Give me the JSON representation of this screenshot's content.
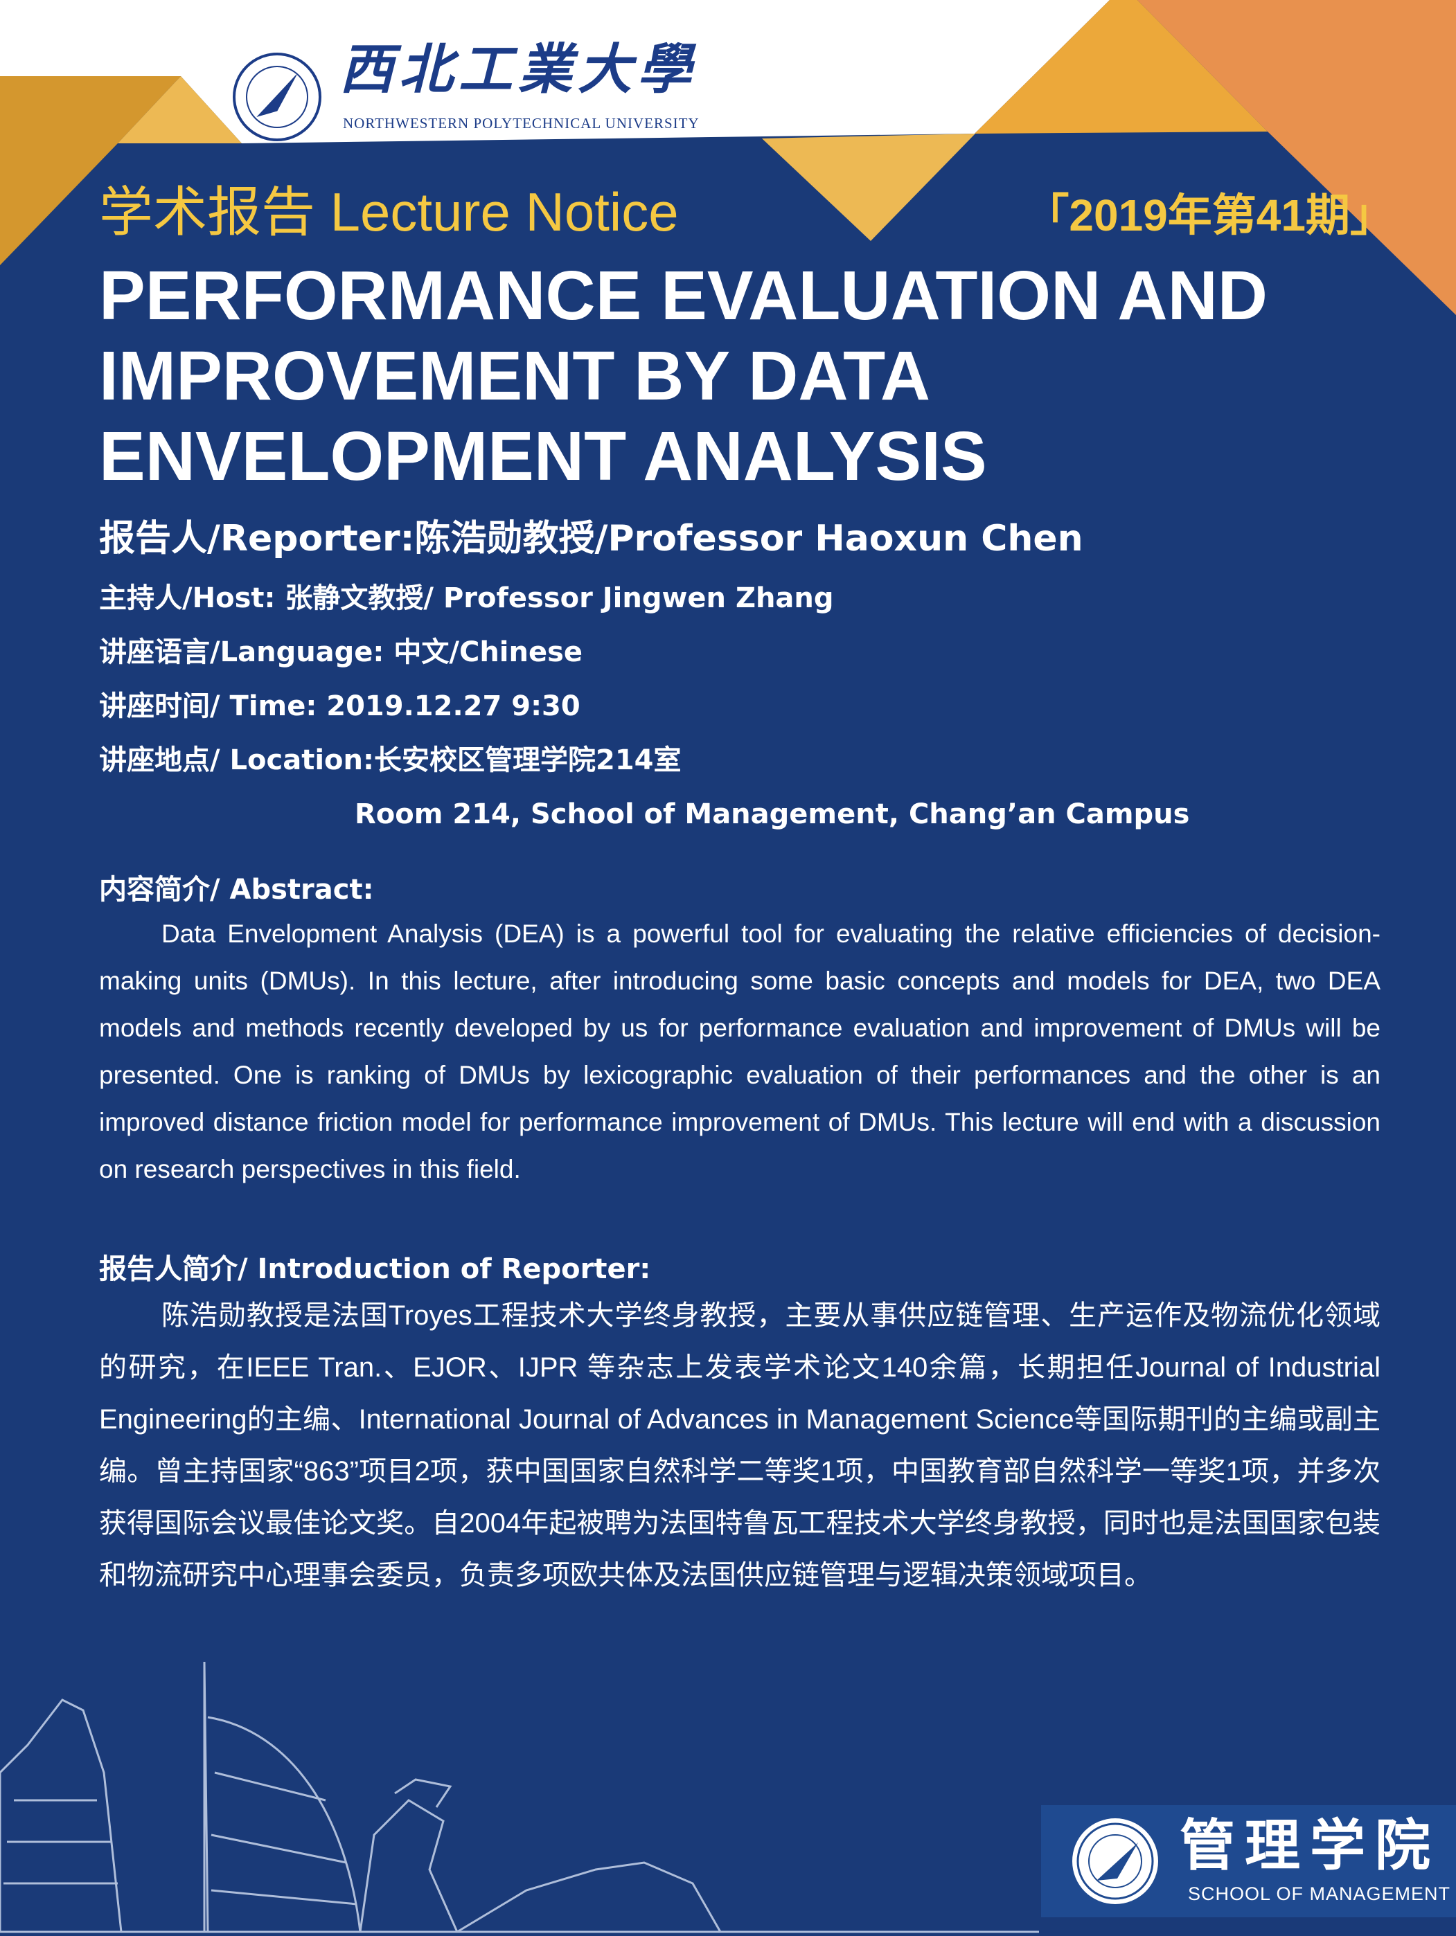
{
  "colors": {
    "background": "#1a3a78",
    "accent_yellow": "#f5c842",
    "orange": "#e8914e",
    "gold": "#eaa838",
    "light_gold": "#edb954"
  },
  "header": {
    "university_cn": "西北工業大學",
    "university_en": "NORTHWESTERN POLYTECHNICAL UNIVERSITY",
    "notice": "学术报告 Lecture Notice",
    "issue": "「2019年第41期」"
  },
  "title": "PERFORMANCE EVALUATION AND IMPROVEMENT BY DATA ENVELOPMENT ANALYSIS",
  "reporter": "报告人/Reporter:陈浩勋教授/Professor Haoxun Chen",
  "details": {
    "host": "主持人/Host: 张静文教授/ Professor  Jingwen Zhang",
    "language": "讲座语言/Language: 中文/Chinese",
    "time": "讲座时间/ Time: 2019.12.27 9:30",
    "location": "讲座地点/ Location:长安校区管理学院214室",
    "location_en": "Room 214, School of Management, Chang’an Campus"
  },
  "abstract": {
    "heading": "内容简介/ Abstract:",
    "text": "Data Envelopment Analysis (DEA) is a powerful tool for evaluating the relative efficiencies of decision-making units (DMUs). In this lecture, after introducing some basic concepts and models for DEA, two DEA models and methods recently developed by us for performance evaluation and improvement of DMUs will be presented. One is ranking of DMUs by lexicographic evaluation of their performances and the other is an improved distance friction model for performance improvement of DMUs. This lecture will end with a discussion on research perspectives in this field."
  },
  "intro": {
    "heading": "报告人简介/ Introduction of Reporter:",
    "text": "陈浩勋教授是法国Troyes工程技术大学终身教授，主要从事供应链管理、生产运作及物流优化领域的研究，在IEEE Tran.、EJOR、IJPR 等杂志上发表学术论文140余篇，长期担任Journal of Industrial Engineering的主编、International Journal of Advances in Management Science等国际期刊的主编或副主编。曾主持国家“863”项目2项，获中国国家自然科学二等奖1项，中国教育部自然科学一等奖1项，并多次获得国际会议最佳论文奖。自2004年起被聘为法国特鲁瓦工程技术大学终身教授，同时也是法国国家包装和物流研究中心理事会委员，负责多项欧共体及法国供应链管理与逻辑决策领域项目。"
  },
  "footer": {
    "school_cn": "管理学院",
    "school_en": "SCHOOL OF MANAGEMENT"
  }
}
